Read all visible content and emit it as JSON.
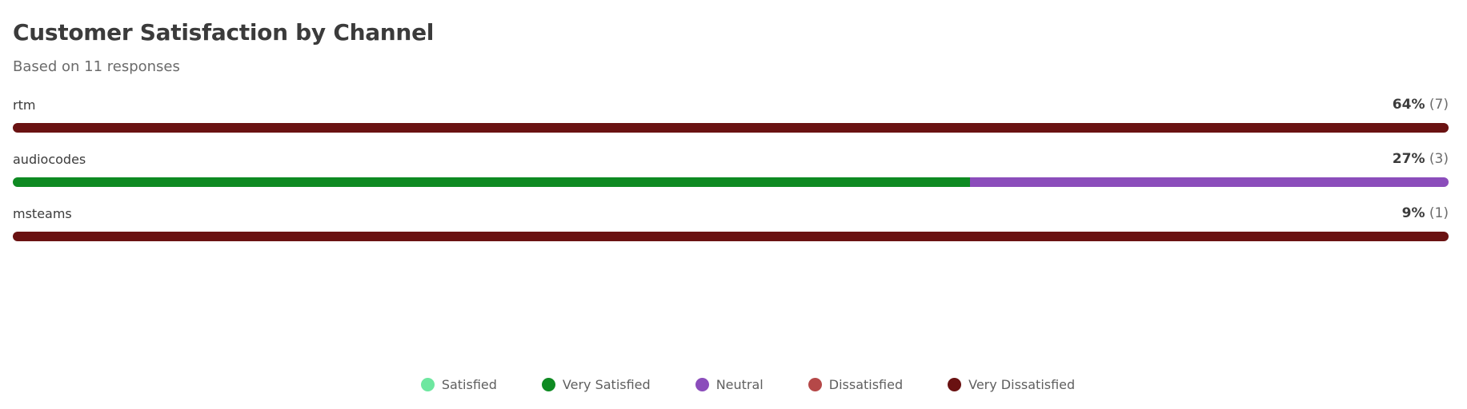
{
  "title": "Customer Satisfaction by Channel",
  "subtitle": "Based on 11 responses",
  "colors": {
    "Satisfied": "#6ee7a0",
    "Very Satisfied": "#0e8a22",
    "Neutral": "#8b4dbb",
    "Dissatisfied": "#b54848",
    "Very Dissatisfied": "#6a1212"
  },
  "chart_data": {
    "type": "bar",
    "orientation": "horizontal-stacked",
    "title": "Customer Satisfaction by Channel",
    "subtitle": "Based on 11 responses",
    "categories": [
      "rtm",
      "audiocodes",
      "msteams"
    ],
    "category_totals": [
      {
        "label": "rtm",
        "percent": "64%",
        "count": "(7)"
      },
      {
        "label": "audiocodes",
        "percent": "27%",
        "count": "(3)"
      },
      {
        "label": "msteams",
        "percent": "9%",
        "count": "(1)"
      }
    ],
    "series": [
      {
        "name": "Satisfied",
        "values": [
          0,
          0,
          0
        ]
      },
      {
        "name": "Very Satisfied",
        "values": [
          0,
          2,
          0
        ]
      },
      {
        "name": "Neutral",
        "values": [
          0,
          1,
          0
        ]
      },
      {
        "name": "Dissatisfied",
        "values": [
          0,
          0,
          0
        ]
      },
      {
        "name": "Very Dissatisfied",
        "values": [
          7,
          0,
          1
        ]
      }
    ],
    "legend": [
      "Satisfied",
      "Very Satisfied",
      "Neutral",
      "Dissatisfied",
      "Very Dissatisfied"
    ],
    "legend_position": "bottom-center"
  }
}
